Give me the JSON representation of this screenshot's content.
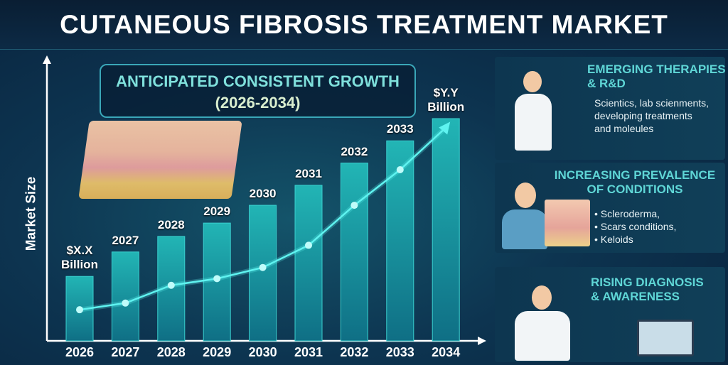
{
  "title": "CUTANEOUS FIBROSIS TREATMENT MARKET",
  "chart_data": {
    "type": "bar",
    "title": "ANTICIPATED CONSISTENT GROWTH",
    "subtitle": "(2026-2034)",
    "ylabel": "Market Size",
    "xlabel": "",
    "categories": [
      "2026",
      "2027",
      "2028",
      "2029",
      "2030",
      "2031",
      "2032",
      "2033",
      "2034"
    ],
    "bar_labels": [
      "$X.X Billion",
      "2027",
      "2028",
      "2029",
      "2030",
      "2031",
      "2032",
      "2033",
      "$Y.Y Billion"
    ],
    "values_relative_percent": [
      29,
      40,
      47,
      53,
      61,
      70,
      80,
      90,
      100
    ],
    "trend_line_relative_percent": [
      14,
      17,
      25,
      28,
      33,
      43,
      61,
      77,
      96
    ],
    "bar_color": "#1aa3a8",
    "line_color": "#5ff3f0",
    "grid": false,
    "legend": "none"
  },
  "panels": [
    {
      "heading": [
        "EMERGING THERAPIES",
        "& R&D"
      ],
      "text": [
        "Scientics, lab scienments,",
        "developing treatments",
        "and moleules"
      ]
    },
    {
      "heading": [
        "INCREASING PREVALENCE",
        "OF CONDITIONS"
      ],
      "text": [
        "• Scleroderma,",
        "• Scars conditions,",
        "• Keloids"
      ]
    },
    {
      "heading": [
        "RISING DIAGNOSIS",
        "& AWARENESS"
      ],
      "text": []
    }
  ]
}
